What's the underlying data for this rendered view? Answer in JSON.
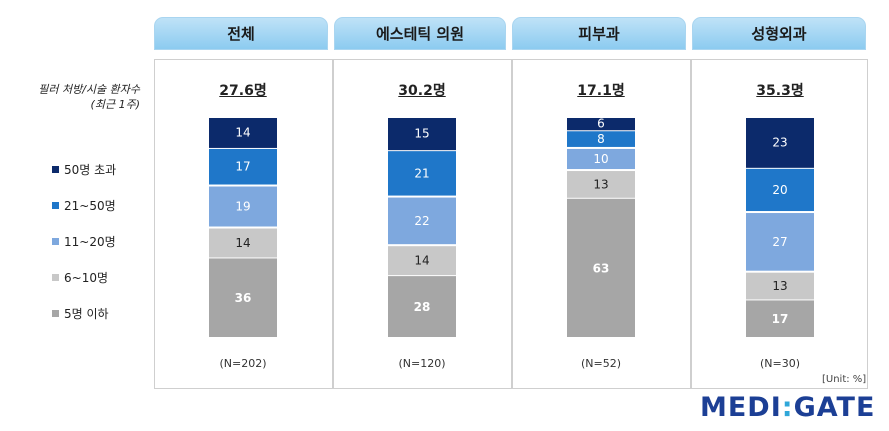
{
  "chart_data": {
    "type": "bar",
    "stacked": true,
    "axis_title": [
      "필러 처방/시술 환자수",
      "(최근 1주)"
    ],
    "categories": [
      "전체",
      "에스테틱 의원",
      "피부과",
      "성형외과"
    ],
    "totals": [
      "27.6명",
      "30.2명",
      "17.1명",
      "35.3명"
    ],
    "n_labels": [
      "(N=202)",
      "(N=120)",
      "(N=52)",
      "(N=30)"
    ],
    "unit": "[Unit: %]",
    "series": [
      {
        "name": "5명 이하",
        "color": "#a6a6a6",
        "values": [
          36,
          28,
          63,
          17
        ]
      },
      {
        "name": "6~10명",
        "color": "#c8c8c8",
        "values": [
          14,
          14,
          13,
          13
        ]
      },
      {
        "name": "11~20명",
        "color": "#7ea8de",
        "values": [
          19,
          22,
          10,
          27
        ]
      },
      {
        "name": "21~50명",
        "color": "#1f77c9",
        "values": [
          17,
          21,
          8,
          20
        ]
      },
      {
        "name": "50명 초과",
        "color": "#0c2a6b",
        "values": [
          14,
          15,
          6,
          23
        ]
      }
    ],
    "legend_order": [
      "50명 초과",
      "21~50명",
      "11~20명",
      "6~10명",
      "5명 이하"
    ],
    "legend_position": "left"
  },
  "brand": {
    "logo_left": "MEDI",
    "logo_sep": ":",
    "logo_right": "GATE",
    "color": "#1c3f95",
    "accent": "#2fa7d9"
  }
}
